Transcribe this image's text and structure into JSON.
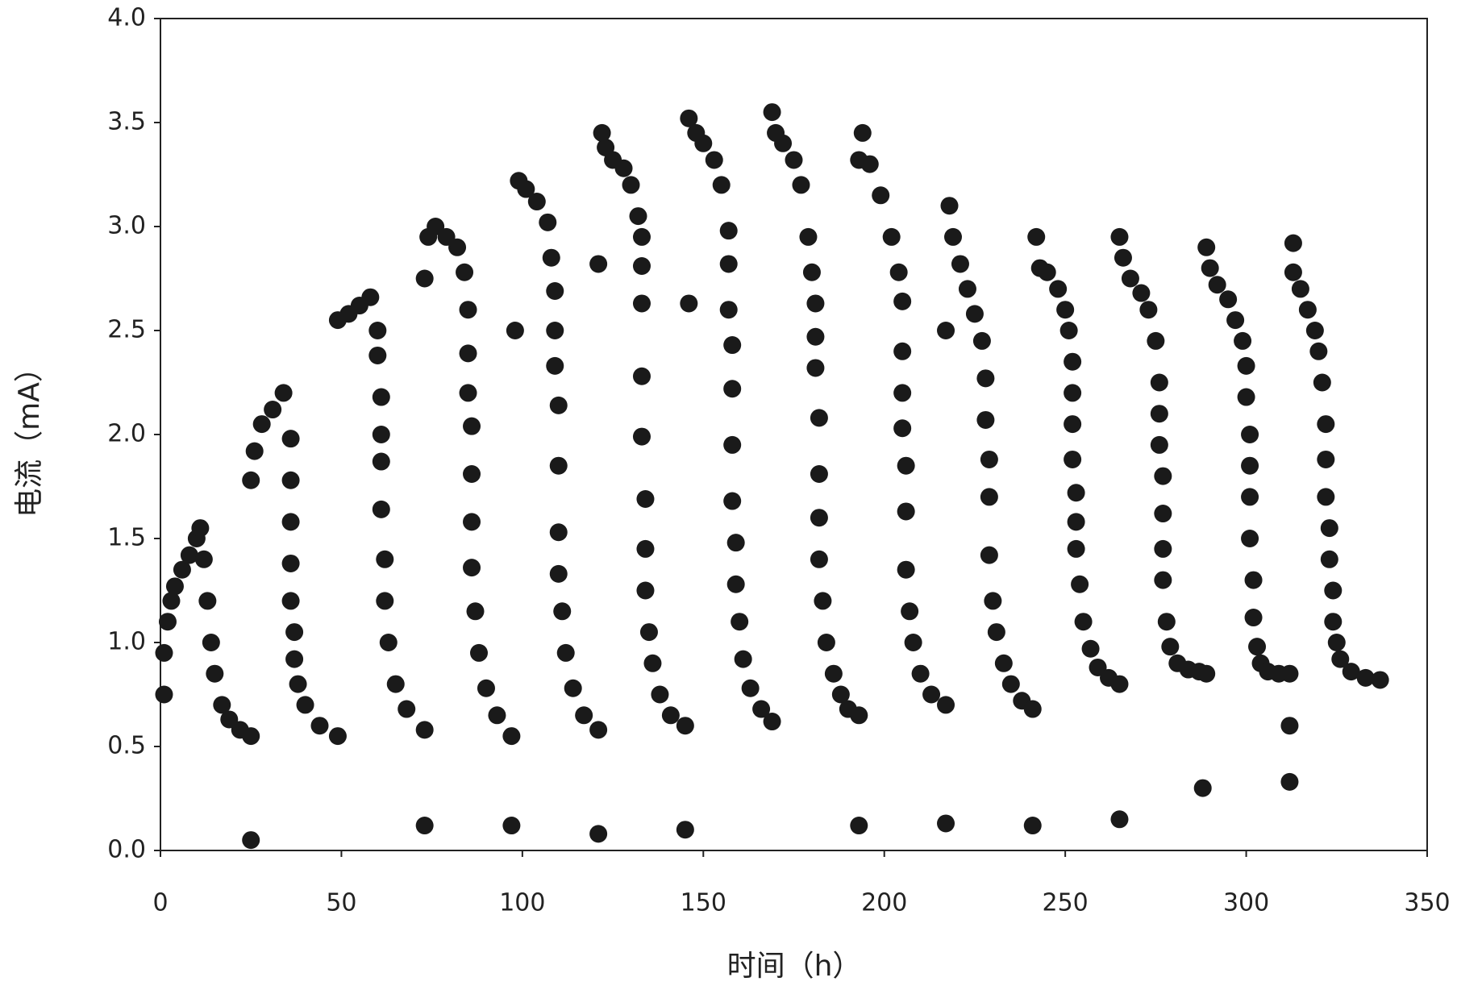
{
  "chart_data": {
    "type": "scatter",
    "x_label": "时间（h）",
    "y_label": "电流（mA）",
    "xlim": [
      0,
      350
    ],
    "xticks": [
      0,
      50,
      100,
      150,
      200,
      250,
      300,
      350
    ],
    "ylim": [
      0,
      4
    ],
    "yticks": [
      {
        "value": 0,
        "label": "0.0"
      },
      0.5,
      {
        "value": 1,
        "label": "1.0"
      },
      1.5,
      {
        "value": 2,
        "label": "2.0"
      },
      2.5,
      {
        "value": 3,
        "label": "3.0"
      },
      3.5,
      {
        "value": 4,
        "label": "4.0"
      }
    ],
    "color": "#1a1a1a",
    "grid": false,
    "x": [
      1,
      1,
      2,
      3,
      4,
      6,
      8,
      10,
      11,
      12,
      13,
      14,
      15,
      17,
      19,
      22,
      25,
      25,
      25,
      26,
      28,
      31,
      34,
      36,
      36,
      36,
      36,
      36,
      37,
      37,
      38,
      40,
      44,
      49,
      49,
      52,
      55,
      58,
      60,
      60,
      61,
      61,
      61,
      61,
      62,
      62,
      63,
      65,
      68,
      73,
      73,
      73,
      74,
      76,
      79,
      82,
      84,
      85,
      85,
      85,
      86,
      86,
      86,
      86,
      87,
      88,
      90,
      93,
      97,
      97,
      98,
      99,
      101,
      104,
      107,
      108,
      109,
      109,
      109,
      110,
      110,
      110,
      110,
      111,
      112,
      114,
      117,
      121,
      121,
      121,
      122,
      123,
      125,
      128,
      130,
      132,
      133,
      133,
      133,
      133,
      133,
      134,
      134,
      134,
      135,
      136,
      138,
      141,
      145,
      145,
      146,
      146,
      148,
      150,
      153,
      155,
      157,
      157,
      157,
      158,
      158,
      158,
      158,
      159,
      159,
      160,
      161,
      163,
      166,
      169,
      169,
      170,
      172,
      175,
      177,
      179,
      180,
      181,
      181,
      181,
      182,
      182,
      182,
      182,
      183,
      184,
      186,
      188,
      190,
      193,
      193,
      193,
      194,
      196,
      199,
      202,
      204,
      205,
      205,
      205,
      205,
      206,
      206,
      206,
      207,
      208,
      210,
      213,
      217,
      217,
      217,
      218,
      219,
      221,
      223,
      225,
      227,
      228,
      228,
      229,
      229,
      229,
      230,
      231,
      233,
      235,
      238,
      241,
      241,
      242,
      243,
      245,
      248,
      250,
      251,
      252,
      252,
      252,
      252,
      253,
      253,
      253,
      254,
      255,
      257,
      259,
      262,
      265,
      265,
      265,
      266,
      268,
      271,
      273,
      275,
      276,
      276,
      276,
      277,
      277,
      277,
      277,
      278,
      279,
      281,
      284,
      287,
      289,
      288,
      289,
      290,
      292,
      295,
      297,
      299,
      300,
      300,
      301,
      301,
      301,
      301,
      302,
      302,
      303,
      304,
      306,
      309,
      312,
      312,
      312,
      313,
      313,
      315,
      317,
      319,
      320,
      321,
      322,
      322,
      322,
      323,
      323,
      324,
      324,
      325,
      326,
      329,
      333,
      337
    ],
    "values": [
      0.75,
      0.95,
      1.1,
      1.2,
      1.27,
      1.35,
      1.42,
      1.5,
      1.55,
      1.4,
      1.2,
      1.0,
      0.85,
      0.7,
      0.63,
      0.58,
      0.55,
      0.05,
      1.78,
      1.92,
      2.05,
      2.12,
      2.2,
      1.98,
      1.78,
      1.58,
      1.38,
      1.2,
      1.05,
      0.92,
      0.8,
      0.7,
      0.6,
      0.55,
      2.55,
      2.58,
      2.62,
      2.66,
      2.5,
      2.38,
      2.18,
      2.0,
      1.87,
      1.64,
      1.4,
      1.2,
      1.0,
      0.8,
      0.68,
      0.58,
      0.12,
      2.75,
      2.95,
      3.0,
      2.95,
      2.9,
      2.78,
      2.6,
      2.39,
      2.2,
      2.04,
      1.81,
      1.58,
      1.36,
      1.15,
      0.95,
      0.78,
      0.65,
      0.55,
      0.12,
      2.5,
      3.22,
      3.18,
      3.12,
      3.02,
      2.85,
      2.69,
      2.5,
      2.33,
      2.14,
      1.85,
      1.53,
      1.33,
      1.15,
      0.95,
      0.78,
      0.65,
      0.58,
      0.08,
      2.82,
      3.45,
      3.38,
      3.32,
      3.28,
      3.2,
      3.05,
      2.95,
      2.81,
      2.63,
      2.28,
      1.99,
      1.69,
      1.45,
      1.25,
      1.05,
      0.9,
      0.75,
      0.65,
      0.6,
      0.1,
      2.63,
      3.52,
      3.45,
      3.4,
      3.32,
      3.2,
      2.98,
      2.82,
      2.6,
      2.43,
      2.22,
      1.95,
      1.68,
      1.48,
      1.28,
      1.1,
      0.92,
      0.78,
      0.68,
      0.62,
      3.55,
      3.45,
      3.4,
      3.32,
      3.2,
      2.95,
      2.78,
      2.63,
      2.47,
      2.32,
      2.08,
      1.81,
      1.6,
      1.4,
      1.2,
      1.0,
      0.85,
      0.75,
      0.68,
      0.65,
      0.12,
      3.32,
      3.45,
      3.3,
      3.15,
      2.95,
      2.78,
      2.64,
      2.4,
      2.2,
      2.03,
      1.85,
      1.63,
      1.35,
      1.15,
      1.0,
      0.85,
      0.75,
      0.7,
      0.13,
      2.5,
      3.1,
      2.95,
      2.82,
      2.7,
      2.58,
      2.45,
      2.27,
      2.07,
      1.88,
      1.7,
      1.42,
      1.2,
      1.05,
      0.9,
      0.8,
      0.72,
      0.68,
      0.12,
      2.95,
      2.8,
      2.78,
      2.7,
      2.6,
      2.5,
      2.35,
      2.2,
      2.05,
      1.88,
      1.72,
      1.58,
      1.45,
      1.28,
      1.1,
      0.97,
      0.88,
      0.83,
      0.8,
      0.15,
      2.95,
      2.85,
      2.75,
      2.68,
      2.6,
      2.45,
      2.25,
      2.1,
      1.95,
      1.8,
      1.62,
      1.45,
      1.3,
      1.1,
      0.98,
      0.9,
      0.87,
      0.86,
      0.85,
      0.3,
      2.9,
      2.8,
      2.72,
      2.65,
      2.55,
      2.45,
      2.33,
      2.18,
      2.0,
      1.85,
      1.7,
      1.5,
      1.3,
      1.12,
      0.98,
      0.9,
      0.86,
      0.85,
      0.85,
      0.6,
      0.33,
      2.92,
      2.78,
      2.7,
      2.6,
      2.5,
      2.4,
      2.25,
      2.05,
      1.88,
      1.7,
      1.55,
      1.4,
      1.25,
      1.1,
      1.0,
      0.92,
      0.86,
      0.83,
      0.82
    ]
  }
}
